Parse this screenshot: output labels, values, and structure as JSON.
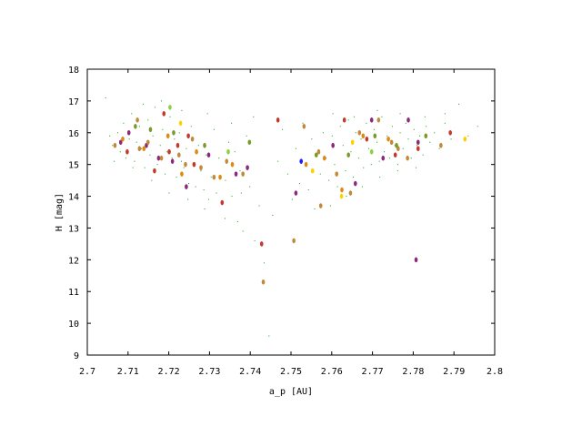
{
  "chart_data": {
    "type": "scatter",
    "title": "",
    "xlabel": "a_p [AU]",
    "ylabel": "H [mag]",
    "xlim": [
      2.7,
      2.8
    ],
    "ylim": [
      9,
      18
    ],
    "xticks": [
      "2.7",
      "2.71",
      "2.72",
      "2.73",
      "2.74",
      "2.75",
      "2.76",
      "2.77",
      "2.78",
      "2.79",
      "2.8"
    ],
    "yticks": [
      "9",
      "10",
      "11",
      "12",
      "13",
      "14",
      "15",
      "16",
      "17",
      "18"
    ],
    "grid": false,
    "legend": "none",
    "series": [
      {
        "color": "#00a800",
        "marker": "dot",
        "values": [
          [
            2.7045,
            17.1
          ],
          [
            2.7055,
            15.9
          ],
          [
            2.7062,
            15.6
          ],
          [
            2.7075,
            16.0
          ],
          [
            2.7081,
            15.4
          ],
          [
            2.7089,
            16.3
          ],
          [
            2.7095,
            15.2
          ],
          [
            2.7103,
            15.8
          ],
          [
            2.7109,
            16.6
          ],
          [
            2.7116,
            15.1
          ],
          [
            2.7121,
            15.7
          ],
          [
            2.7128,
            16.2
          ],
          [
            2.7133,
            15.5
          ],
          [
            2.7141,
            14.9
          ],
          [
            2.7149,
            16.4
          ],
          [
            2.7154,
            15.3
          ],
          [
            2.7161,
            15.9
          ],
          [
            2.7166,
            16.8
          ],
          [
            2.7172,
            15.0
          ],
          [
            2.7179,
            15.6
          ],
          [
            2.7185,
            16.1
          ],
          [
            2.7191,
            14.7
          ],
          [
            2.7196,
            15.4
          ],
          [
            2.7203,
            16.5
          ],
          [
            2.7208,
            15.2
          ],
          [
            2.7214,
            15.8
          ],
          [
            2.7219,
            14.6
          ],
          [
            2.7226,
            16.0
          ],
          [
            2.7231,
            15.1
          ],
          [
            2.7237,
            14.9
          ],
          [
            2.7243,
            15.5
          ],
          [
            2.7249,
            14.4
          ],
          [
            2.7255,
            16.2
          ],
          [
            2.7261,
            15.0
          ],
          [
            2.7266,
            14.3
          ],
          [
            2.7273,
            15.6
          ],
          [
            2.7279,
            14.8
          ],
          [
            2.7286,
            14.2
          ],
          [
            2.7292,
            15.3
          ],
          [
            2.7298,
            13.9
          ],
          [
            2.7304,
            14.6
          ],
          [
            2.7311,
            16.1
          ],
          [
            2.7317,
            14.1
          ],
          [
            2.7323,
            15.2
          ],
          [
            2.7331,
            13.8
          ],
          [
            2.7339,
            14.5
          ],
          [
            2.7347,
            15.7
          ],
          [
            2.7355,
            14.0
          ],
          [
            2.7362,
            15.4
          ],
          [
            2.7369,
            13.2
          ],
          [
            2.7375,
            14.8
          ],
          [
            2.7382,
            12.9
          ],
          [
            2.7391,
            15.9
          ],
          [
            2.7399,
            14.3
          ],
          [
            2.7411,
            12.6
          ],
          [
            2.7422,
            13.7
          ],
          [
            2.7434,
            11.9
          ],
          [
            2.7446,
            9.6
          ],
          [
            2.7455,
            13.4
          ],
          [
            2.7468,
            15.1
          ],
          [
            2.7479,
            16.1
          ],
          [
            2.7492,
            14.7
          ],
          [
            2.7503,
            13.9
          ],
          [
            2.7512,
            15.5
          ],
          [
            2.7521,
            14.4
          ],
          [
            2.7529,
            16.3
          ],
          [
            2.7536,
            15.0
          ],
          [
            2.7543,
            14.2
          ],
          [
            2.7551,
            15.8
          ],
          [
            2.7558,
            13.6
          ],
          [
            2.7565,
            15.3
          ],
          [
            2.7572,
            14.7
          ],
          [
            2.7579,
            16.0
          ],
          [
            2.7586,
            15.2
          ],
          [
            2.7593,
            14.5
          ],
          [
            2.7601,
            15.9
          ],
          [
            2.7607,
            15.0
          ],
          [
            2.7614,
            14.3
          ],
          [
            2.7621,
            16.2
          ],
          [
            2.7628,
            15.6
          ],
          [
            2.7634,
            14.8
          ],
          [
            2.7641,
            16.4
          ],
          [
            2.7647,
            15.4
          ],
          [
            2.7653,
            14.6
          ],
          [
            2.7659,
            16.0
          ],
          [
            2.7666,
            15.2
          ],
          [
            2.7672,
            15.8
          ],
          [
            2.7678,
            14.9
          ],
          [
            2.7685,
            16.3
          ],
          [
            2.7691,
            15.5
          ],
          [
            2.7697,
            15.0
          ],
          [
            2.7704,
            16.1
          ],
          [
            2.7711,
            15.7
          ],
          [
            2.7717,
            15.1
          ],
          [
            2.7723,
            16.5
          ],
          [
            2.7729,
            15.4
          ],
          [
            2.7736,
            15.9
          ],
          [
            2.7742,
            15.2
          ],
          [
            2.7749,
            16.2
          ],
          [
            2.7755,
            15.6
          ],
          [
            2.7762,
            15.0
          ],
          [
            2.7768,
            16.0
          ],
          [
            2.7775,
            15.5
          ],
          [
            2.7782,
            16.3
          ],
          [
            2.7788,
            15.8
          ],
          [
            2.7795,
            15.2
          ],
          [
            2.7802,
            16.1
          ],
          [
            2.7809,
            15.6
          ],
          [
            2.7816,
            15.9
          ],
          [
            2.7824,
            15.3
          ],
          [
            2.7832,
            16.2
          ],
          [
            2.7841,
            15.7
          ],
          [
            2.7852,
            16.0
          ],
          [
            2.7864,
            15.5
          ],
          [
            2.7878,
            16.3
          ],
          [
            2.7893,
            15.8
          ],
          [
            2.7912,
            16.9
          ],
          [
            2.7935,
            15.9
          ],
          [
            2.7958,
            16.2
          ],
          [
            2.7066,
            15.1
          ],
          [
            2.7112,
            14.9
          ],
          [
            2.7158,
            14.5
          ],
          [
            2.7201,
            14.1
          ],
          [
            2.7247,
            13.9
          ],
          [
            2.7288,
            13.6
          ],
          [
            2.7338,
            13.3
          ],
          [
            2.7378,
            14.1
          ],
          [
            2.7597,
            13.7
          ],
          [
            2.7636,
            14.0
          ],
          [
            2.7675,
            14.3
          ],
          [
            2.7718,
            14.6
          ],
          [
            2.7762,
            14.8
          ],
          [
            2.7807,
            14.9
          ],
          [
            2.7137,
            16.9
          ],
          [
            2.7182,
            17.0
          ],
          [
            2.7232,
            16.7
          ],
          [
            2.7295,
            16.6
          ],
          [
            2.7354,
            16.3
          ],
          [
            2.7408,
            16.5
          ],
          [
            2.7603,
            16.6
          ],
          [
            2.7655,
            16.5
          ],
          [
            2.7712,
            16.7
          ],
          [
            2.7768,
            16.6
          ],
          [
            2.7829,
            16.5
          ],
          [
            2.7878,
            16.6
          ]
        ]
      },
      {
        "color": "#c23a2c",
        "marker": "ellipse",
        "values": [
          [
            2.7098,
            15.4
          ],
          [
            2.7165,
            14.8
          ],
          [
            2.7188,
            16.6
          ],
          [
            2.7201,
            15.4
          ],
          [
            2.7248,
            15.9
          ],
          [
            2.7262,
            15.0
          ],
          [
            2.7331,
            13.8
          ],
          [
            2.7468,
            16.4
          ],
          [
            2.7631,
            16.4
          ],
          [
            2.7686,
            15.8
          ],
          [
            2.7756,
            15.3
          ],
          [
            2.7812,
            15.5
          ],
          [
            2.7891,
            16.0
          ],
          [
            2.7222,
            15.6
          ],
          [
            2.7428,
            12.5
          ]
        ]
      },
      {
        "color": "#8b2a7a",
        "marker": "ellipse",
        "values": [
          [
            2.7082,
            15.7
          ],
          [
            2.7102,
            16.0
          ],
          [
            2.7145,
            15.6
          ],
          [
            2.7175,
            15.2
          ],
          [
            2.7209,
            15.1
          ],
          [
            2.7243,
            14.3
          ],
          [
            2.7298,
            15.3
          ],
          [
            2.7365,
            14.7
          ],
          [
            2.7512,
            14.1
          ],
          [
            2.7603,
            15.6
          ],
          [
            2.7658,
            14.4
          ],
          [
            2.7698,
            16.4
          ],
          [
            2.7726,
            15.2
          ],
          [
            2.7788,
            16.4
          ],
          [
            2.7812,
            15.7
          ],
          [
            2.7807,
            12.0
          ],
          [
            2.7393,
            14.9
          ]
        ]
      },
      {
        "color": "#c08a3a",
        "marker": "ellipse",
        "values": [
          [
            2.7068,
            15.6
          ],
          [
            2.7123,
            16.4
          ],
          [
            2.7128,
            15.5
          ],
          [
            2.7149,
            15.7
          ],
          [
            2.7182,
            15.2
          ],
          [
            2.7225,
            15.3
          ],
          [
            2.7241,
            15.0
          ],
          [
            2.7258,
            15.8
          ],
          [
            2.7279,
            14.9
          ],
          [
            2.7311,
            14.6
          ],
          [
            2.7342,
            15.1
          ],
          [
            2.7382,
            14.7
          ],
          [
            2.7432,
            11.3
          ],
          [
            2.7507,
            12.6
          ],
          [
            2.7532,
            16.2
          ],
          [
            2.7568,
            15.4
          ],
          [
            2.7573,
            13.7
          ],
          [
            2.7612,
            14.7
          ],
          [
            2.7646,
            14.1
          ],
          [
            2.7668,
            16.0
          ],
          [
            2.7715,
            16.4
          ],
          [
            2.7747,
            15.7
          ],
          [
            2.7763,
            15.5
          ],
          [
            2.7786,
            15.2
          ],
          [
            2.7868,
            15.6
          ]
        ]
      },
      {
        "color": "#dd8a10",
        "marker": "ellipse",
        "values": [
          [
            2.7087,
            15.8
          ],
          [
            2.7139,
            15.5
          ],
          [
            2.7198,
            15.9
          ],
          [
            2.7232,
            14.7
          ],
          [
            2.7268,
            15.4
          ],
          [
            2.7326,
            14.6
          ],
          [
            2.7356,
            15.0
          ],
          [
            2.7537,
            15.0
          ],
          [
            2.7582,
            15.2
          ],
          [
            2.7625,
            14.2
          ],
          [
            2.7677,
            15.9
          ],
          [
            2.7739,
            15.8
          ]
        ]
      },
      {
        "color": "#7a9a28",
        "marker": "ellipse",
        "values": [
          [
            2.7118,
            16.2
          ],
          [
            2.7155,
            16.1
          ],
          [
            2.7212,
            16.0
          ],
          [
            2.7288,
            15.6
          ],
          [
            2.7398,
            15.7
          ],
          [
            2.7562,
            15.3
          ],
          [
            2.7641,
            15.3
          ],
          [
            2.7706,
            15.9
          ],
          [
            2.7759,
            15.6
          ],
          [
            2.7831,
            15.9
          ]
        ]
      },
      {
        "color": "#ffd000",
        "marker": "ellipse",
        "values": [
          [
            2.7229,
            16.3
          ],
          [
            2.7553,
            14.8
          ],
          [
            2.7624,
            14.0
          ],
          [
            2.7651,
            15.7
          ],
          [
            2.7927,
            15.8
          ]
        ]
      },
      {
        "color": "#8ad040",
        "marker": "ellipse",
        "values": [
          [
            2.7203,
            16.8
          ],
          [
            2.7346,
            15.4
          ],
          [
            2.7698,
            15.4
          ]
        ]
      },
      {
        "color": "#1c1cff",
        "marker": "ellipse",
        "values": [
          [
            2.7525,
            15.1
          ]
        ]
      }
    ]
  }
}
